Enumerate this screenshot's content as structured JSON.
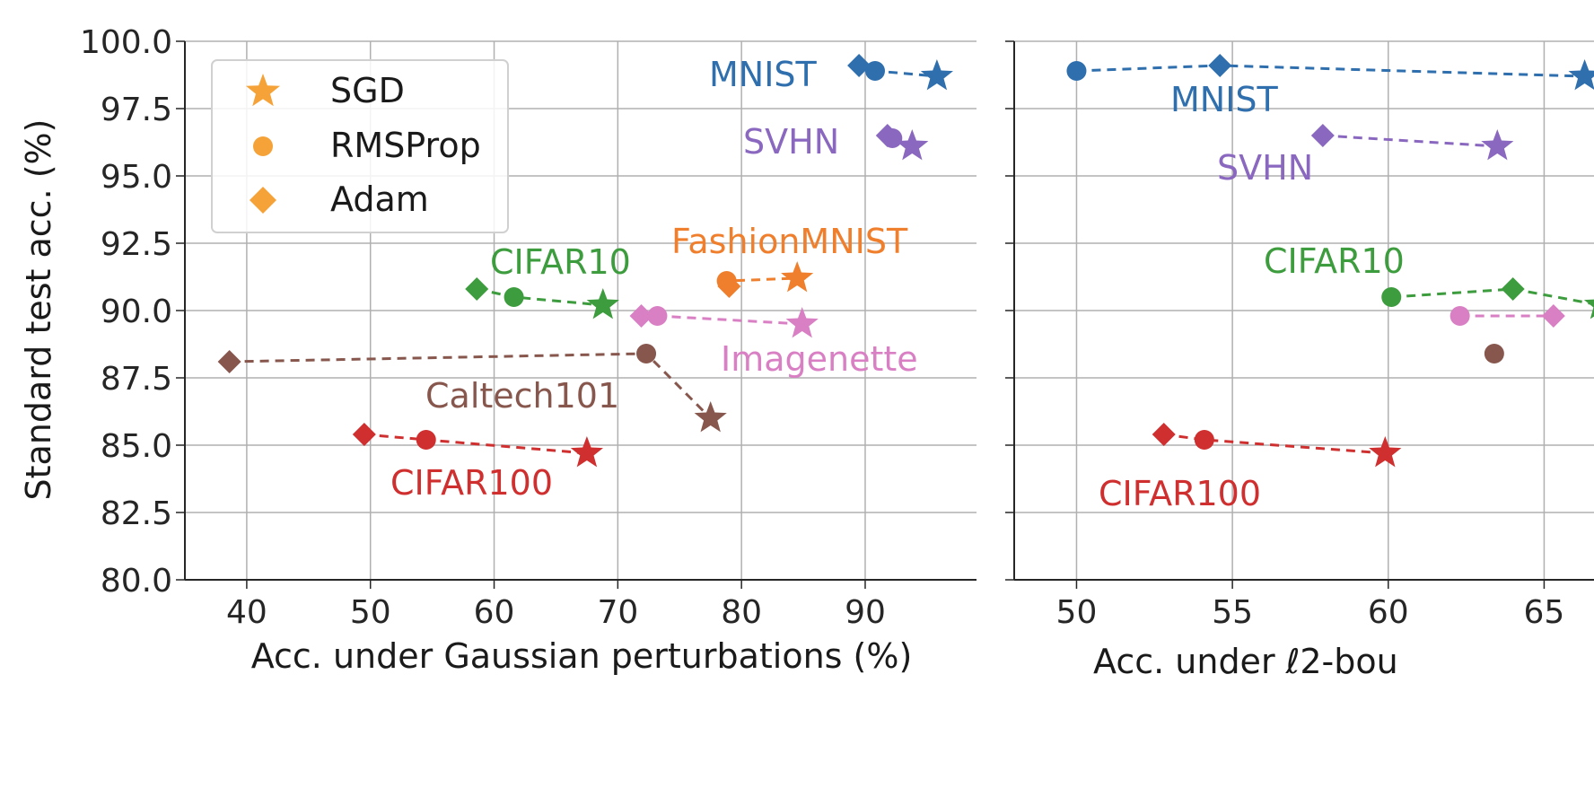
{
  "legend": {
    "entries": [
      {
        "label": "SGD",
        "marker": "star"
      },
      {
        "label": "RMSProp",
        "marker": "circle"
      },
      {
        "label": "Adam",
        "marker": "diamond"
      }
    ],
    "placement": "top-left",
    "marker_color": "#f5a338"
  },
  "colors": {
    "MNIST": "#2f6fae",
    "SVHN": "#8a68bf",
    "FashionMNIST": "#ef7f2c",
    "CIFAR10": "#3d9c3d",
    "Imagenette": "#d97fc4",
    "Caltech101": "#87574d",
    "CIFAR100": "#cf2f2f"
  },
  "chart_data": [
    {
      "type": "scatter",
      "xlabel": "Acc. under Gaussian perturbations (%)",
      "ylabel": "Standard test acc. (%)",
      "xlim": [
        35,
        99
      ],
      "ylim": [
        80,
        100
      ],
      "xticks": [
        "40",
        "50",
        "60",
        "70",
        "80",
        "90"
      ],
      "yticks": [
        "80.0",
        "82.5",
        "85.0",
        "87.5",
        "90.0",
        "92.5",
        "95.0",
        "97.5",
        "100.0"
      ],
      "grid": true,
      "series": [
        {
          "name": "MNIST",
          "points": [
            {
              "optimizer": "Adam",
              "x": 89.5,
              "y": 99.1
            },
            {
              "optimizer": "RMSProp",
              "x": 90.8,
              "y": 98.9
            },
            {
              "optimizer": "SGD",
              "x": 95.8,
              "y": 98.7
            }
          ]
        },
        {
          "name": "SVHN",
          "points": [
            {
              "optimizer": "Adam",
              "x": 91.8,
              "y": 96.5
            },
            {
              "optimizer": "RMSProp",
              "x": 92.2,
              "y": 96.4
            },
            {
              "optimizer": "SGD",
              "x": 93.8,
              "y": 96.1
            }
          ]
        },
        {
          "name": "FashionMNIST",
          "points": [
            {
              "optimizer": "Adam",
              "x": 79.0,
              "y": 90.9
            },
            {
              "optimizer": "RMSProp",
              "x": 78.8,
              "y": 91.1
            },
            {
              "optimizer": "SGD",
              "x": 84.5,
              "y": 91.2
            }
          ]
        },
        {
          "name": "CIFAR10",
          "points": [
            {
              "optimizer": "Adam",
              "x": 58.6,
              "y": 90.8
            },
            {
              "optimizer": "RMSProp",
              "x": 61.6,
              "y": 90.5
            },
            {
              "optimizer": "SGD",
              "x": 68.8,
              "y": 90.2
            }
          ]
        },
        {
          "name": "Imagenette",
          "points": [
            {
              "optimizer": "Adam",
              "x": 71.9,
              "y": 89.8
            },
            {
              "optimizer": "RMSProp",
              "x": 73.2,
              "y": 89.8
            },
            {
              "optimizer": "SGD",
              "x": 84.9,
              "y": 89.5
            }
          ]
        },
        {
          "name": "Caltech101",
          "points": [
            {
              "optimizer": "Adam",
              "x": 38.6,
              "y": 88.1
            },
            {
              "optimizer": "RMSProp",
              "x": 72.3,
              "y": 88.4
            },
            {
              "optimizer": "SGD",
              "x": 77.5,
              "y": 86.0
            }
          ]
        },
        {
          "name": "CIFAR100",
          "points": [
            {
              "optimizer": "Adam",
              "x": 49.5,
              "y": 85.4
            },
            {
              "optimizer": "RMSProp",
              "x": 54.5,
              "y": 85.2
            },
            {
              "optimizer": "SGD",
              "x": 67.5,
              "y": 84.7
            }
          ]
        }
      ]
    },
    {
      "type": "scatter",
      "xlabel": "Acc. under ℓ2-bou",
      "ylabel": "",
      "xlim": [
        48,
        66.6
      ],
      "ylim": [
        80,
        100
      ],
      "xticks": [
        "50",
        "55",
        "60",
        "65"
      ],
      "yticks": [],
      "grid": true,
      "series": [
        {
          "name": "MNIST",
          "points": [
            {
              "optimizer": "RMSProp",
              "x": 50.0,
              "y": 98.9
            },
            {
              "optimizer": "Adam",
              "x": 54.6,
              "y": 99.1
            },
            {
              "optimizer": "SGD",
              "x": 66.3,
              "y": 98.7
            }
          ]
        },
        {
          "name": "SVHN",
          "points": [
            {
              "optimizer": "Adam",
              "x": 57.9,
              "y": 96.5
            },
            {
              "optimizer": "SGD",
              "x": 63.5,
              "y": 96.1
            }
          ]
        },
        {
          "name": "CIFAR10",
          "points": [
            {
              "optimizer": "RMSProp",
              "x": 60.1,
              "y": 90.5
            },
            {
              "optimizer": "Adam",
              "x": 64.0,
              "y": 90.8
            },
            {
              "optimizer": "SGD",
              "x": 66.8,
              "y": 90.2
            }
          ]
        },
        {
          "name": "Imagenette",
          "points": [
            {
              "optimizer": "RMSProp",
              "x": 62.3,
              "y": 89.8
            },
            {
              "optimizer": "Adam",
              "x": 65.3,
              "y": 89.8
            }
          ]
        },
        {
          "name": "Caltech101",
          "points": [
            {
              "optimizer": "RMSProp",
              "x": 63.4,
              "y": 88.4
            }
          ]
        },
        {
          "name": "CIFAR100",
          "points": [
            {
              "optimizer": "Adam",
              "x": 52.8,
              "y": 85.4
            },
            {
              "optimizer": "RMSProp",
              "x": 54.1,
              "y": 85.2
            },
            {
              "optimizer": "SGD",
              "x": 59.9,
              "y": 84.7
            }
          ]
        }
      ]
    }
  ]
}
